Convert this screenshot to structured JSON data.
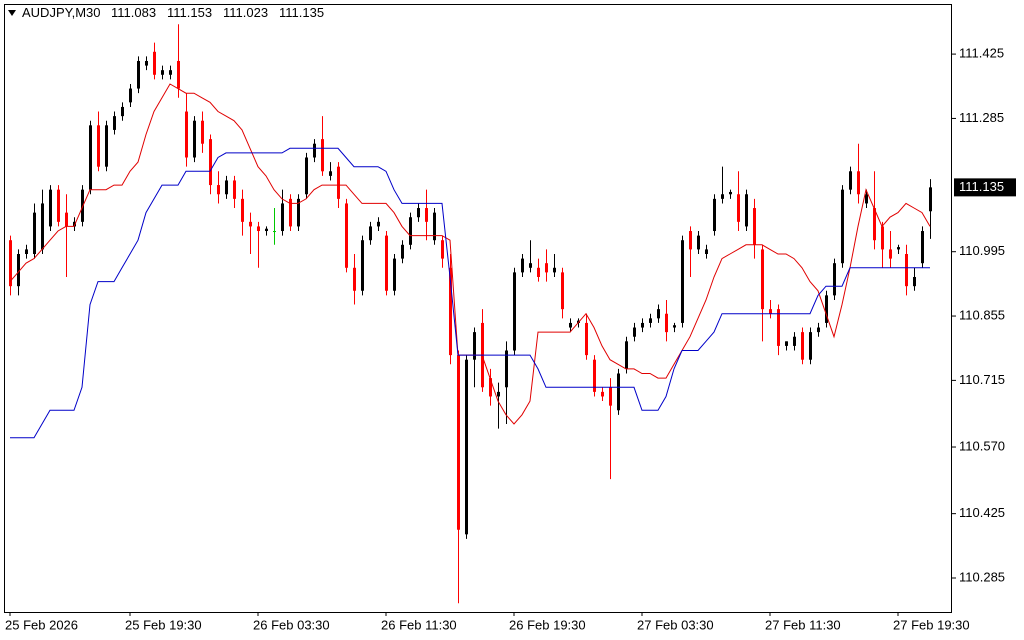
{
  "chart_data": {
    "type": "candlestick",
    "symbol": "AUDJPY,M30",
    "categories": [
      "25 Feb 2026",
      null,
      null,
      null,
      null,
      null,
      null,
      null,
      null,
      null,
      null,
      null,
      null,
      null,
      null,
      "25 Feb 19:30",
      null,
      null,
      null,
      null,
      null,
      null,
      null,
      null,
      null,
      null,
      null,
      null,
      null,
      null,
      null,
      "26 Feb 03:30",
      null,
      null,
      null,
      null,
      null,
      null,
      null,
      null,
      null,
      null,
      null,
      null,
      null,
      null,
      null,
      "26 Feb 11:30",
      null,
      null,
      null,
      null,
      null,
      null,
      null,
      null,
      null,
      null,
      null,
      null,
      null,
      null,
      null,
      "26 Feb 19:30",
      null,
      null,
      null,
      null,
      null,
      null,
      null,
      null,
      null,
      null,
      null,
      null,
      null,
      null,
      null,
      "27 Feb 03:30",
      null,
      null,
      null,
      null,
      null,
      null,
      null,
      null,
      null,
      null,
      null,
      null,
      null,
      null,
      null,
      "27 Feb 11:30",
      null,
      null,
      null,
      null,
      null,
      null,
      null,
      null,
      null,
      null,
      null,
      null,
      null,
      null,
      null,
      "27 Feb 19:30",
      null,
      null,
      null,
      null
    ],
    "open": [
      111.02,
      110.92,
      110.99,
      110.99,
      111.0,
      111.05,
      111.13,
      111.08,
      111.05,
      111.06,
      111.13,
      111.27,
      111.18,
      111.26,
      111.29,
      111.32,
      111.35,
      111.4,
      111.43,
      111.38,
      111.38,
      111.41,
      111.3,
      111.2,
      111.28,
      111.24,
      111.14,
      111.12,
      111.15,
      111.11,
      111.06,
      111.05,
      111.04,
      111.04,
      111.04,
      111.11,
      111.05,
      111.12,
      111.2,
      111.24,
      111.16,
      111.18,
      111.1,
      110.96,
      110.91,
      111.02,
      111.05,
      111.03,
      110.91,
      110.98,
      111.01,
      111.07,
      111.09,
      111.02,
      111.02,
      110.96,
      110.77,
      110.38,
      110.76,
      110.84,
      110.72,
      110.68,
      110.7,
      110.78,
      110.95,
      110.96,
      110.96,
      110.97,
      110.95,
      110.95,
      110.83,
      110.84,
      110.84,
      110.76,
      110.69,
      110.7,
      110.65,
      110.74,
      110.81,
      110.83,
      110.84,
      110.85,
      110.86,
      110.83,
      110.84,
      111.04,
      111.0,
      110.99,
      111.04,
      111.11,
      111.12,
      111.12,
      111.05,
      111.09,
      111.0,
      110.87,
      110.87,
      110.79,
      110.79,
      110.82,
      110.76,
      110.82,
      110.84,
      110.9,
      110.97,
      111.13,
      111.17,
      111.1,
      111.09,
      111.05,
      111.0,
      111.0,
      110.99,
      110.92,
      110.97,
      111.083
    ],
    "high": [
      111.03,
      111.0,
      111.01,
      111.1,
      111.13,
      111.14,
      111.14,
      111.12,
      111.07,
      111.14,
      111.28,
      111.3,
      111.28,
      111.3,
      111.32,
      111.36,
      111.42,
      111.42,
      111.45,
      111.4,
      111.4,
      111.49,
      111.34,
      111.29,
      111.3,
      111.25,
      111.17,
      111.16,
      111.16,
      111.13,
      111.08,
      111.06,
      111.05,
      111.09,
      111.13,
      111.12,
      111.12,
      111.21,
      111.24,
      111.29,
      111.19,
      111.19,
      111.11,
      110.99,
      111.03,
      111.06,
      111.07,
      111.04,
      110.99,
      111.02,
      111.08,
      111.1,
      111.13,
      111.09,
      111.03,
      110.99,
      110.78,
      110.77,
      110.83,
      110.87,
      110.74,
      110.71,
      110.8,
      110.96,
      110.99,
      111.02,
      110.98,
      111.0,
      110.99,
      110.96,
      110.85,
      110.85,
      110.86,
      110.77,
      110.7,
      110.72,
      110.74,
      110.81,
      110.84,
      110.85,
      110.86,
      110.88,
      110.89,
      110.84,
      111.03,
      111.05,
      111.04,
      111.01,
      111.12,
      111.18,
      111.13,
      111.17,
      111.13,
      111.11,
      111.01,
      110.89,
      110.88,
      110.8,
      110.82,
      110.83,
      110.83,
      110.84,
      110.91,
      110.98,
      111.14,
      111.18,
      111.23,
      111.13,
      111.17,
      111.06,
      111.04,
      111.01,
      111.01,
      110.96,
      111.05,
      111.153
    ],
    "low": [
      110.9,
      110.9,
      110.98,
      110.98,
      110.99,
      111.04,
      111.05,
      110.94,
      111.04,
      111.05,
      111.12,
      111.17,
      111.17,
      111.25,
      111.28,
      111.31,
      111.34,
      111.39,
      111.37,
      111.37,
      111.37,
      111.33,
      111.18,
      111.19,
      111.21,
      111.12,
      111.1,
      111.11,
      111.09,
      111.03,
      110.99,
      110.96,
      111.03,
      111.01,
      111.03,
      111.04,
      111.04,
      111.11,
      111.19,
      111.16,
      111.15,
      111.09,
      110.95,
      110.88,
      110.9,
      111.01,
      111.04,
      110.9,
      110.9,
      110.97,
      111.0,
      111.06,
      111.02,
      111.01,
      110.96,
      110.75,
      110.23,
      110.37,
      110.7,
      110.69,
      110.66,
      110.61,
      110.62,
      110.77,
      110.94,
      110.95,
      110.93,
      110.93,
      110.94,
      110.85,
      110.82,
      110.83,
      110.76,
      110.68,
      110.67,
      110.5,
      110.64,
      110.73,
      110.8,
      110.82,
      110.83,
      110.84,
      110.8,
      110.82,
      110.83,
      110.94,
      110.99,
      110.98,
      111.03,
      111.1,
      111.11,
      111.04,
      111.04,
      110.98,
      110.8,
      110.85,
      110.77,
      110.78,
      110.78,
      110.75,
      110.75,
      110.81,
      110.83,
      110.89,
      110.96,
      111.12,
      111.1,
      111.09,
      111.0,
      110.96,
      110.96,
      110.99,
      110.9,
      110.91,
      110.96,
      111.023
    ],
    "close": [
      110.92,
      110.99,
      111.0,
      111.08,
      111.1,
      111.13,
      111.06,
      111.05,
      111.06,
      111.13,
      111.27,
      111.18,
      111.27,
      111.29,
      111.31,
      111.35,
      111.41,
      111.41,
      111.38,
      111.39,
      111.39,
      111.35,
      111.2,
      111.28,
      111.23,
      111.14,
      111.12,
      111.15,
      111.11,
      111.06,
      111.05,
      111.04,
      111.045,
      111.04,
      111.1,
      111.05,
      111.11,
      111.2,
      111.23,
      111.17,
      111.17,
      111.11,
      110.96,
      110.91,
      111.02,
      111.05,
      111.06,
      110.91,
      110.98,
      111.01,
      111.07,
      111.09,
      111.06,
      111.08,
      110.98,
      110.77,
      110.39,
      110.76,
      110.82,
      110.7,
      110.68,
      110.69,
      110.78,
      110.95,
      110.98,
      110.97,
      110.94,
      110.95,
      110.96,
      110.87,
      110.84,
      110.845,
      110.77,
      110.69,
      110.68,
      110.66,
      110.73,
      110.8,
      110.83,
      110.84,
      110.85,
      110.87,
      110.82,
      110.835,
      111.02,
      111.0,
      111.03,
      111.0,
      111.11,
      111.12,
      111.125,
      111.06,
      111.12,
      111.01,
      110.87,
      110.86,
      110.79,
      110.8,
      110.81,
      110.76,
      110.82,
      110.83,
      110.9,
      110.97,
      111.13,
      111.17,
      111.12,
      111.12,
      111.02,
      111.0,
      110.98,
      111.005,
      110.92,
      110.94,
      111.04,
      111.135
    ],
    "up_color": "#000000",
    "down_color": "#ff0000",
    "doji_color": "#00c800",
    "series": [
      {
        "color": "#e00000",
        "values": [
          110.93,
          110.95,
          110.97,
          110.98,
          111.0,
          111.02,
          111.04,
          111.05,
          111.05,
          111.09,
          111.13,
          111.13,
          111.13,
          111.14,
          111.14,
          111.17,
          111.19,
          111.25,
          111.3,
          111.33,
          111.36,
          111.35,
          111.34,
          111.34,
          111.33,
          111.32,
          111.3,
          111.29,
          111.28,
          111.26,
          111.22,
          111.18,
          111.16,
          111.13,
          111.11,
          111.1,
          111.1,
          111.11,
          111.13,
          111.14,
          111.14,
          111.14,
          111.14,
          111.12,
          111.1,
          111.1,
          111.1,
          111.1,
          111.08,
          111.05,
          111.03,
          111.03,
          111.03,
          111.03,
          111.03,
          111.02,
          110.77,
          110.77,
          110.77,
          110.77,
          110.72,
          110.67,
          110.64,
          110.62,
          110.64,
          110.67,
          110.82,
          110.82,
          110.82,
          110.82,
          110.82,
          110.84,
          110.86,
          110.83,
          110.79,
          110.76,
          110.75,
          110.74,
          110.74,
          110.73,
          110.73,
          110.72,
          110.72,
          110.75,
          110.78,
          110.81,
          110.85,
          110.89,
          110.94,
          110.98,
          110.99,
          111.0,
          111.01,
          111.01,
          111.01,
          111.0,
          110.99,
          110.99,
          110.98,
          110.96,
          110.93,
          110.91,
          110.86,
          110.81,
          110.88,
          110.96,
          111.05,
          111.13,
          111.09,
          111.05,
          111.07,
          111.08,
          111.1,
          111.09,
          111.08,
          111.05
        ]
      },
      {
        "color": "#0000c8",
        "values": [
          110.59,
          110.59,
          110.59,
          110.59,
          110.62,
          110.65,
          110.65,
          110.65,
          110.65,
          110.7,
          110.88,
          110.93,
          110.93,
          110.93,
          110.96,
          110.99,
          111.02,
          111.08,
          111.11,
          111.14,
          111.14,
          111.14,
          111.17,
          111.17,
          111.17,
          111.17,
          111.2,
          111.21,
          111.21,
          111.21,
          111.21,
          111.21,
          111.21,
          111.21,
          111.21,
          111.22,
          111.22,
          111.22,
          111.22,
          111.22,
          111.22,
          111.22,
          111.2,
          111.18,
          111.18,
          111.18,
          111.18,
          111.17,
          111.13,
          111.1,
          111.1,
          111.1,
          111.1,
          111.1,
          111.1,
          110.94,
          110.77,
          110.77,
          110.77,
          110.77,
          110.77,
          110.77,
          110.77,
          110.77,
          110.77,
          110.77,
          110.74,
          110.7,
          110.7,
          110.7,
          110.7,
          110.7,
          110.7,
          110.7,
          110.7,
          110.7,
          110.7,
          110.7,
          110.7,
          110.65,
          110.65,
          110.65,
          110.68,
          110.74,
          110.78,
          110.78,
          110.78,
          110.8,
          110.82,
          110.86,
          110.86,
          110.86,
          110.86,
          110.86,
          110.86,
          110.86,
          110.86,
          110.86,
          110.86,
          110.86,
          110.86,
          110.9,
          110.92,
          110.92,
          110.92,
          110.96,
          110.96,
          110.96,
          110.96,
          110.96,
          110.96,
          110.96,
          110.96,
          110.96,
          110.96,
          110.96
        ]
      }
    ],
    "ylim": [
      110.211,
      111.534
    ],
    "yticks": [
      111.425,
      111.285,
      110.995,
      110.855,
      110.715,
      {
        "value": 110.57,
        "label": "110.570"
      },
      110.425,
      110.285
    ]
  }
}
